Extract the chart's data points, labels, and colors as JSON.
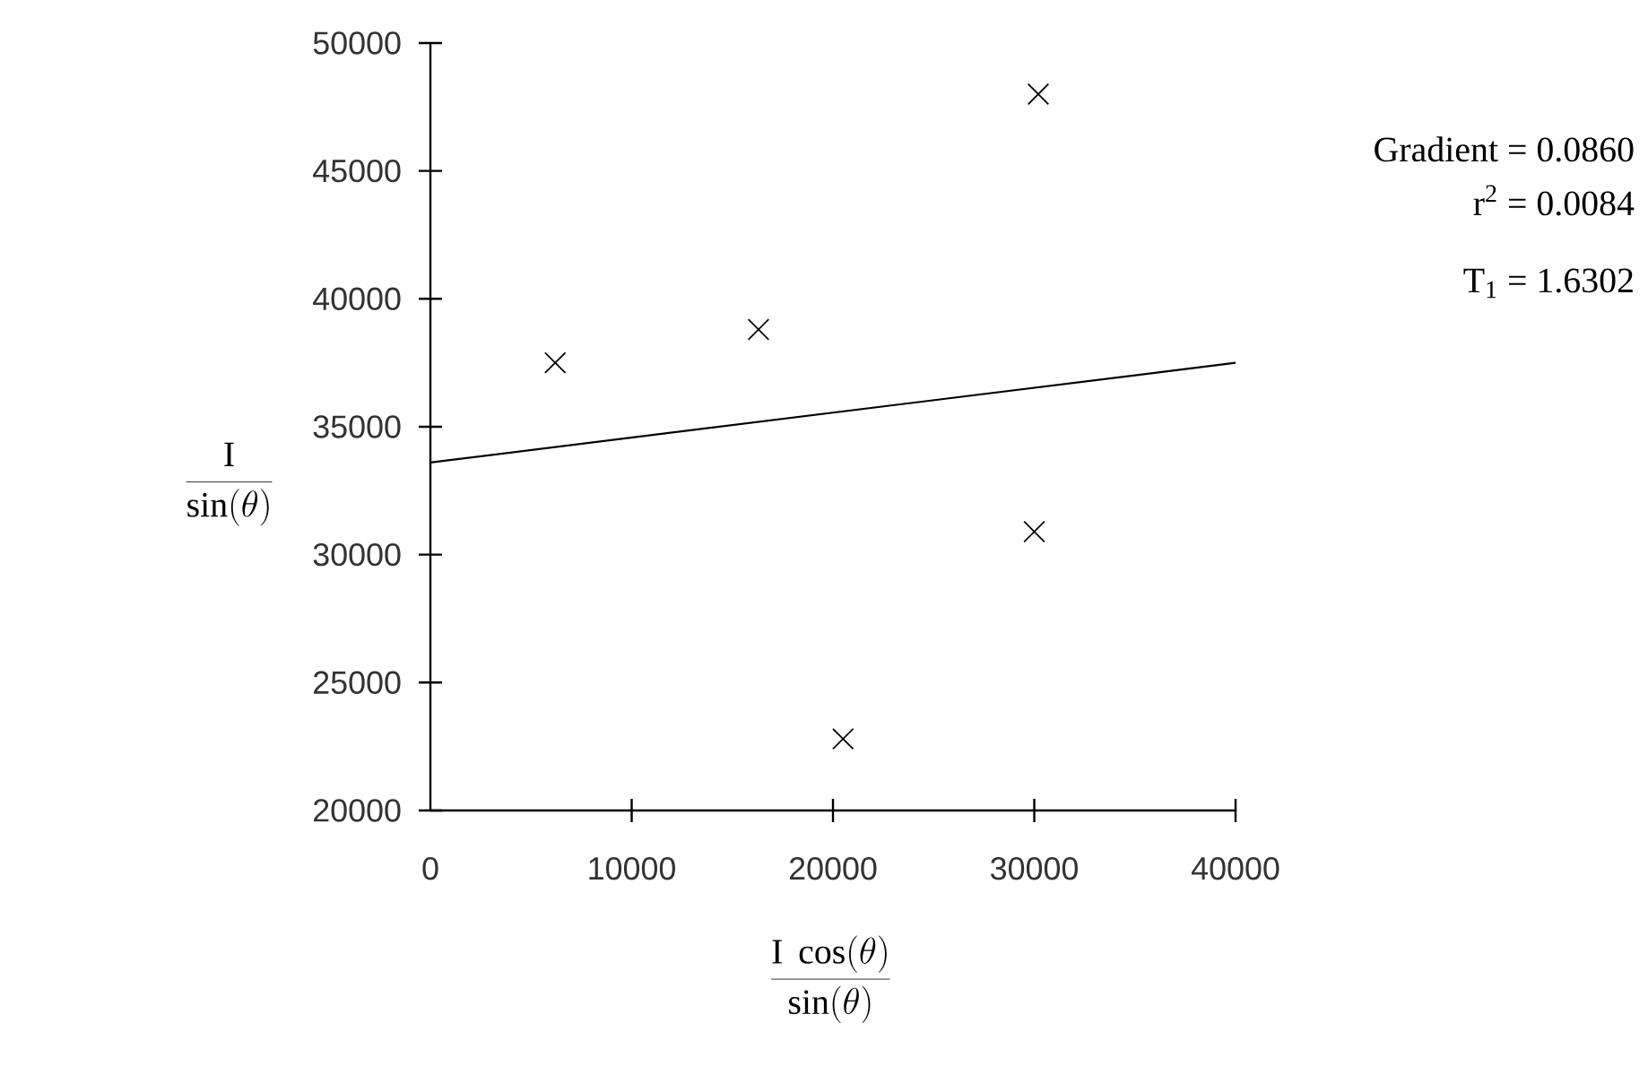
{
  "chart_data": {
    "type": "scatter",
    "xlabel": "\\frac{\\mathrm{I}\\ \\cos(\\theta)}{\\sin(\\theta)}",
    "ylabel": "\\frac{\\mathrm{I}}{\\sin(\\theta)}",
    "xlim": [
      0,
      40000
    ],
    "ylim": [
      20000,
      50000
    ],
    "xticks": [
      0,
      10000,
      20000,
      30000,
      40000
    ],
    "yticks": [
      20000,
      25000,
      30000,
      35000,
      40000,
      45000,
      50000
    ],
    "series": [
      {
        "type": "scatter",
        "color": "#000000",
        "marker": "cross",
        "x": [
          6200,
          16300,
          20500,
          30000,
          30200
        ],
        "values": [
          37500,
          38800,
          22800,
          30900,
          48000
        ]
      },
      {
        "type": "line",
        "color": "#000000",
        "marker": "none",
        "line_style": "solid",
        "x": [
          0,
          40000
        ],
        "values": [
          33600,
          37500
        ]
      }
    ],
    "annotations": [
      "Gradient = 0.0860",
      "r$^{2}$ = 0.0084",
      "T$_{1}$ = 1.6302"
    ]
  }
}
